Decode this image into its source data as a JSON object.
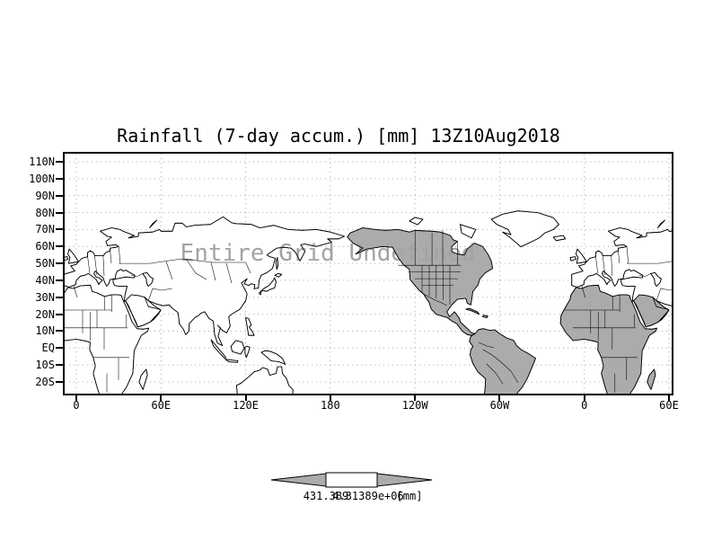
{
  "title": "Rainfall (7-day accum.) [mm] 13Z10Aug2018",
  "watermark": "Entire Grid Undefined",
  "axes": {
    "lat_labels": [
      "110N",
      "100N",
      "90N",
      "80N",
      "70N",
      "60N",
      "50N",
      "40N",
      "30N",
      "20N",
      "10N",
      "EQ",
      "10S",
      "20S"
    ],
    "lon_labels": [
      "0",
      "60E",
      "120E",
      "180",
      "120W",
      "60W",
      "0",
      "60E"
    ]
  },
  "colorbar": {
    "min_label": "431.389",
    "max_label": "4.31389e+06",
    "units": "[mm]"
  },
  "colors": {
    "background": "#ffffff",
    "coastline": "#000000",
    "land_shaded": "#ababab",
    "land_unshaded": "#ffffff",
    "grid": "#b4b4b4",
    "watermark": "#a3a3a3",
    "colorbar_arrow": "#ababab",
    "colorbar_box": "#ffffff"
  },
  "chart_data": {
    "type": "heatmap",
    "title": "Rainfall (7-day accum.) [mm] 13Z10Aug2018",
    "variable": "Rainfall (7-day accum.)",
    "units": "[mm]",
    "valid_time": "13Z10Aug2018",
    "projection": "latlon",
    "x_tick_labels": [
      "0",
      "60E",
      "120E",
      "180",
      "120W",
      "60W",
      "0",
      "60E"
    ],
    "y_tick_labels": [
      "110N",
      "100N",
      "90N",
      "80N",
      "70N",
      "60N",
      "50N",
      "40N",
      "30N",
      "20N",
      "10N",
      "EQ",
      "10S",
      "20S"
    ],
    "lon_range_deg": [
      0,
      420
    ],
    "lat_range_deg": [
      -27,
      115
    ],
    "grid": true,
    "status": "Entire Grid Undefined",
    "values": [],
    "colorbar": {
      "boundary_labels": [
        "431.389",
        "4.31389e+06"
      ],
      "units": "[mm]",
      "position": "bottom"
    }
  }
}
